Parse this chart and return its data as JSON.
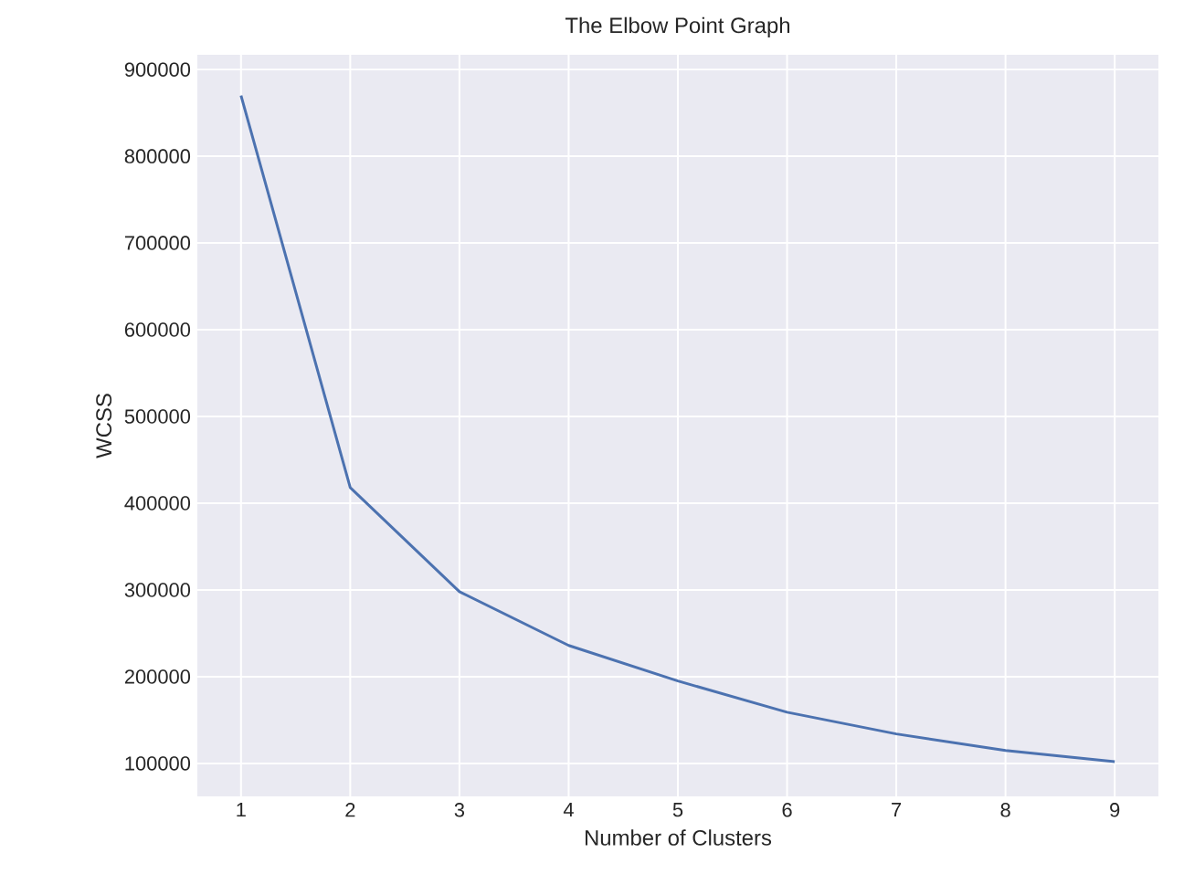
{
  "chart_data": {
    "type": "line",
    "title": "The Elbow Point Graph",
    "xlabel": "Number of Clusters",
    "ylabel": "WCSS",
    "x": [
      1,
      2,
      3,
      4,
      5,
      6,
      7,
      8,
      9
    ],
    "series": [
      {
        "color": "#4c72b0",
        "values": [
          870000,
          418000,
          298000,
          236000,
          195000,
          159000,
          134000,
          115000,
          102000
        ]
      }
    ],
    "xlim": [
      0.6,
      9.4
    ],
    "ylim": [
      62000,
      917000
    ],
    "xticks": [
      1,
      2,
      3,
      4,
      5,
      6,
      7,
      8,
      9
    ],
    "yticks": [
      100000,
      200000,
      300000,
      400000,
      500000,
      600000,
      700000,
      800000,
      900000
    ],
    "grid": true,
    "marker": "none",
    "line_style": "solid"
  }
}
